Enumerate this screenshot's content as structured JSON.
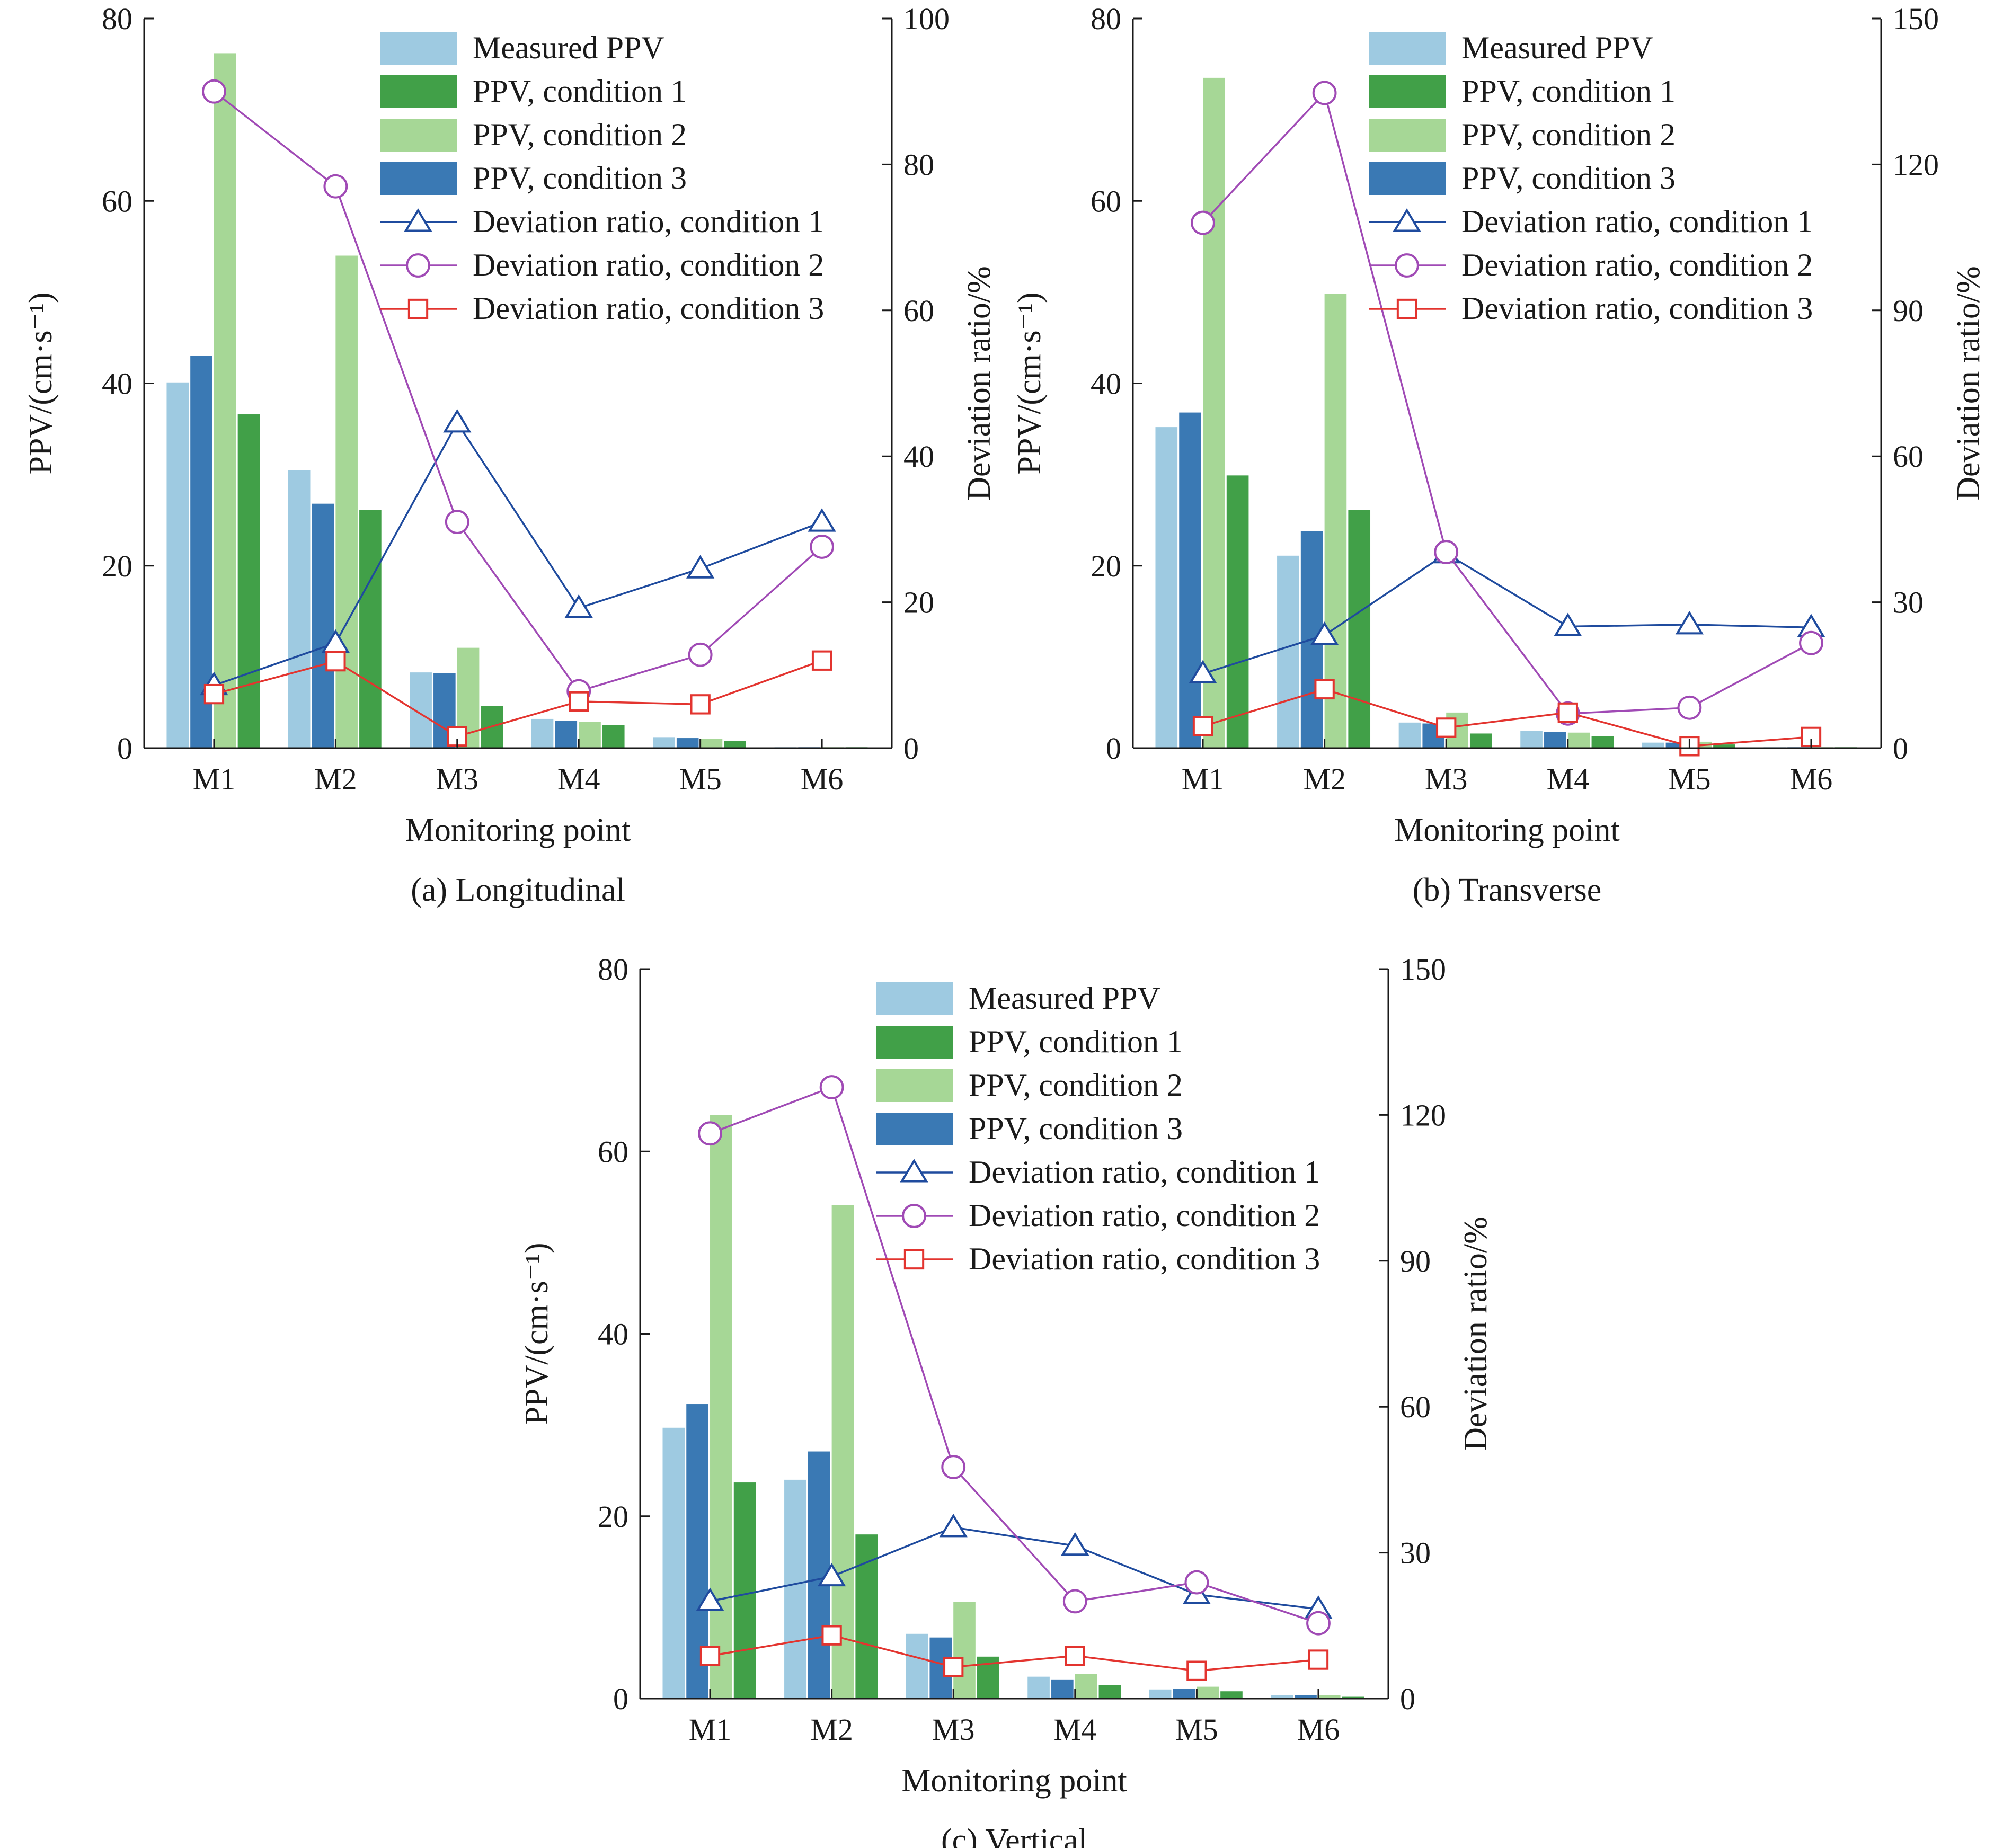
{
  "colors": {
    "measured": "#9ecae1",
    "cond1_bar": "#41a048",
    "cond2_bar": "#a6d796",
    "cond3_bar": "#3a79b4",
    "dev1": "#1f4b9e",
    "dev2": "#a04ab5",
    "dev3": "#e3342f"
  },
  "legend": {
    "measured": "Measured PPV",
    "ppv1": "PPV, condition 1",
    "ppv2": "PPV, condition 2",
    "ppv3": "PPV, condition 3",
    "dev1": "Deviation ratio, condition 1",
    "dev2": "Deviation ratio, condition 2",
    "dev3": "Deviation ratio, condition 3"
  },
  "chart_data": [
    {
      "type": "bar",
      "panel": "a",
      "caption": "(a) Longitudinal",
      "xlabel": "Monitoring point",
      "ylabel_left": "PPV/(cm·s⁻¹)",
      "ylabel_right": "Deviation ratio/%",
      "categories": [
        "M1",
        "M2",
        "M3",
        "M4",
        "M5",
        "M6"
      ],
      "ylim_left": [
        0,
        80
      ],
      "yticks_left": [
        0,
        20,
        40,
        60,
        80
      ],
      "ylim_right": [
        0,
        100
      ],
      "yticks_right": [
        0,
        20,
        40,
        60,
        80,
        100
      ],
      "bars": [
        {
          "name": "Measured PPV",
          "values": [
            40.1,
            30.5,
            8.3,
            3.2,
            1.2,
            0.1
          ]
        },
        {
          "name": "PPV, condition 3",
          "values": [
            43.0,
            26.8,
            8.2,
            3.0,
            1.1,
            0.1
          ]
        },
        {
          "name": "PPV, condition 2",
          "values": [
            76.2,
            54.0,
            11.0,
            2.9,
            1.0,
            0.1
          ]
        },
        {
          "name": "PPV, condition 1",
          "values": [
            36.6,
            26.1,
            4.6,
            2.5,
            0.8,
            0.1
          ]
        }
      ],
      "lines": [
        {
          "name": "Deviation ratio, condition 1",
          "values": [
            8.6,
            14.4,
            44.6,
            19.2,
            24.6,
            31.0
          ]
        },
        {
          "name": "Deviation ratio, condition 2",
          "values": [
            90.0,
            77.0,
            31.0,
            7.8,
            12.8,
            27.6
          ]
        },
        {
          "name": "Deviation ratio, condition 3",
          "values": [
            7.4,
            11.9,
            1.6,
            6.4,
            6.0,
            12.0
          ]
        }
      ]
    },
    {
      "type": "bar",
      "panel": "b",
      "caption": "(b) Transverse",
      "xlabel": "Monitoring point",
      "ylabel_left": "PPV/(cm·s⁻¹)",
      "ylabel_right": "Deviation ratio/%",
      "categories": [
        "M1",
        "M2",
        "M3",
        "M4",
        "M5",
        "M6"
      ],
      "ylim_left": [
        0,
        80
      ],
      "yticks_left": [
        0,
        20,
        40,
        60,
        80
      ],
      "ylim_right": [
        0,
        150
      ],
      "yticks_right": [
        0,
        30,
        60,
        90,
        120,
        150
      ],
      "bars": [
        {
          "name": "Measured PPV",
          "values": [
            35.2,
            21.1,
            2.8,
            1.9,
            0.6,
            0.1
          ]
        },
        {
          "name": "PPV, condition 3",
          "values": [
            36.8,
            23.8,
            2.7,
            1.8,
            0.6,
            0.1
          ]
        },
        {
          "name": "PPV, condition 2",
          "values": [
            73.5,
            49.8,
            3.9,
            1.7,
            0.7,
            0.1
          ]
        },
        {
          "name": "PPV, condition 1",
          "values": [
            29.9,
            26.1,
            1.6,
            1.3,
            0.4,
            0.1
          ]
        }
      ],
      "lines": [
        {
          "name": "Deviation ratio, condition 1",
          "values": [
            15.3,
            23.2,
            40.0,
            25.0,
            25.4,
            24.8
          ]
        },
        {
          "name": "Deviation ratio, condition 2",
          "values": [
            108.0,
            134.7,
            40.3,
            7.1,
            8.3,
            21.6
          ]
        },
        {
          "name": "Deviation ratio, condition 3",
          "values": [
            4.5,
            12.1,
            4.2,
            7.3,
            0.4,
            2.3
          ]
        }
      ]
    },
    {
      "type": "bar",
      "panel": "c",
      "caption": "(c) Vertical",
      "xlabel": "Monitoring point",
      "ylabel_left": "PPV/(cm·s⁻¹)",
      "ylabel_right": "Deviation ratio/%",
      "categories": [
        "M1",
        "M2",
        "M3",
        "M4",
        "M5",
        "M6"
      ],
      "ylim_left": [
        0,
        80
      ],
      "yticks_left": [
        0,
        20,
        40,
        60,
        80
      ],
      "ylim_right": [
        0,
        150
      ],
      "yticks_right": [
        0,
        30,
        60,
        90,
        120,
        150
      ],
      "bars": [
        {
          "name": "Measured PPV",
          "values": [
            29.7,
            24.0,
            7.1,
            2.4,
            1.0,
            0.4
          ]
        },
        {
          "name": "PPV, condition 3",
          "values": [
            32.3,
            27.1,
            6.7,
            2.1,
            1.1,
            0.4
          ]
        },
        {
          "name": "PPV, condition 2",
          "values": [
            64.0,
            54.1,
            10.6,
            2.7,
            1.3,
            0.4
          ]
        },
        {
          "name": "PPV, condition 1",
          "values": [
            23.7,
            18.0,
            4.6,
            1.5,
            0.8,
            0.2
          ]
        }
      ],
      "lines": [
        {
          "name": "Deviation ratio, condition 1",
          "values": [
            20.0,
            25.1,
            35.2,
            31.4,
            21.4,
            18.4
          ]
        },
        {
          "name": "Deviation ratio, condition 2",
          "values": [
            116.2,
            125.7,
            47.6,
            20.0,
            23.9,
            15.5
          ]
        },
        {
          "name": "Deviation ratio, condition 3",
          "values": [
            8.8,
            13.0,
            6.5,
            8.8,
            5.7,
            8.0
          ]
        }
      ]
    }
  ]
}
